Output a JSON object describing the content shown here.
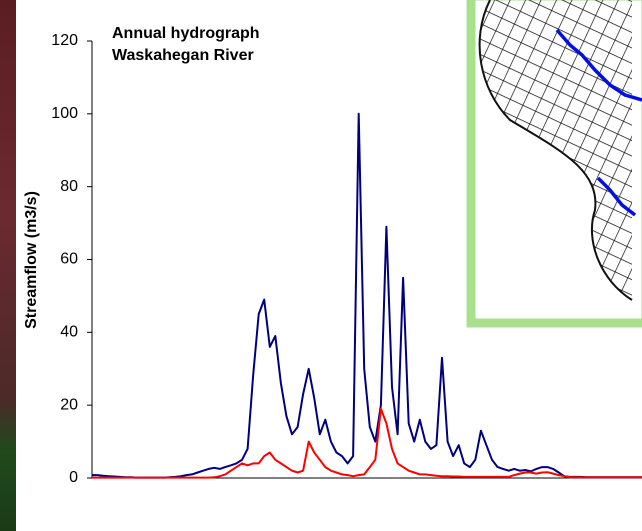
{
  "chart_data": {
    "type": "line",
    "title": "Annual hydrograph",
    "subtitle": "Waskahegan River",
    "y_label": "Streamflow (m3/s)",
    "categories": [
      null,
      null,
      null,
      null,
      null,
      null,
      null,
      null,
      null,
      null,
      null,
      null,
      null,
      null,
      null,
      null,
      null,
      null,
      null,
      null,
      null,
      null,
      null,
      null,
      null,
      null,
      null,
      null,
      null,
      null,
      null,
      null,
      null,
      null,
      null,
      null,
      null,
      null,
      null,
      null,
      null,
      null,
      null,
      null,
      null,
      null,
      null,
      null,
      null,
      null,
      null,
      null,
      null,
      null,
      null,
      null,
      null,
      null,
      null,
      null,
      null,
      null,
      null,
      null,
      null,
      null,
      null,
      null,
      null,
      null,
      null,
      null,
      null,
      null,
      null,
      null,
      null,
      null,
      null,
      null,
      null,
      null,
      null,
      null,
      null,
      null,
      null,
      null,
      null,
      null,
      null,
      null,
      null,
      null,
      null,
      null,
      null,
      null,
      null,
      null
    ],
    "series": [
      {
        "color": "#00007f",
        "values": [
          0.8,
          0.8,
          0.6,
          0.5,
          0.4,
          0.3,
          0.2,
          0.2,
          0.1,
          0.1,
          0.1,
          0.1,
          0.1,
          0.1,
          0.2,
          0.3,
          0.5,
          0.8,
          1,
          1.5,
          2,
          2.5,
          2.8,
          2.5,
          3,
          3.5,
          4,
          5,
          8,
          28,
          45,
          49,
          36,
          39,
          26,
          17,
          12,
          14,
          23,
          30,
          22,
          12,
          16,
          10,
          7,
          6,
          4,
          6,
          100,
          30,
          14,
          10,
          20,
          69,
          25,
          12,
          55,
          15,
          10,
          16,
          10,
          8,
          9,
          33,
          10,
          6,
          9,
          4,
          3,
          5,
          13,
          9,
          5,
          3,
          2.5,
          2,
          2.5,
          2,
          2.2,
          1.8,
          2.5,
          3,
          3,
          2.5,
          1.5,
          0.5,
          0.3,
          0.3,
          0.3,
          0.2,
          0.2,
          0.2,
          0.2,
          0.2,
          0.2,
          0.2,
          0.2,
          0.2,
          0.2,
          0.2
        ]
      },
      {
        "color": "#ff0000",
        "values": [
          0.1,
          0.1,
          0.1,
          0.1,
          0.1,
          0.1,
          0.1,
          0.1,
          0.1,
          0.1,
          0.1,
          0.1,
          0.1,
          0.1,
          0.1,
          0.1,
          0.1,
          0.1,
          0.1,
          0.1,
          0.1,
          0.1,
          0.2,
          0.5,
          1,
          2,
          3,
          4,
          3.5,
          4,
          4,
          6,
          7,
          5,
          4,
          3,
          2,
          1.5,
          2,
          10,
          7,
          5,
          3,
          2,
          1.5,
          1,
          0.8,
          0.5,
          0.8,
          1,
          3,
          5,
          19,
          15,
          8,
          4,
          3,
          2,
          1.5,
          1,
          1,
          0.8,
          0.6,
          0.5,
          0.5,
          0.4,
          0.4,
          0.3,
          0.3,
          0.3,
          0.3,
          0.3,
          0.3,
          0.3,
          0.3,
          0.3,
          0.8,
          1.2,
          1.5,
          1.5,
          1.2,
          1.5,
          1.6,
          1.2,
          0.8,
          0.5,
          0.2,
          0.2,
          0.2,
          0.2,
          0.2,
          0.2,
          0.2,
          0.2,
          0.2,
          0.2,
          0.2,
          0.2,
          0.2,
          0.2
        ]
      }
    ],
    "ylim": [
      0,
      120
    ],
    "yticks": [
      0,
      20,
      40,
      60,
      80,
      100,
      120
    ],
    "grid": false
  }
}
